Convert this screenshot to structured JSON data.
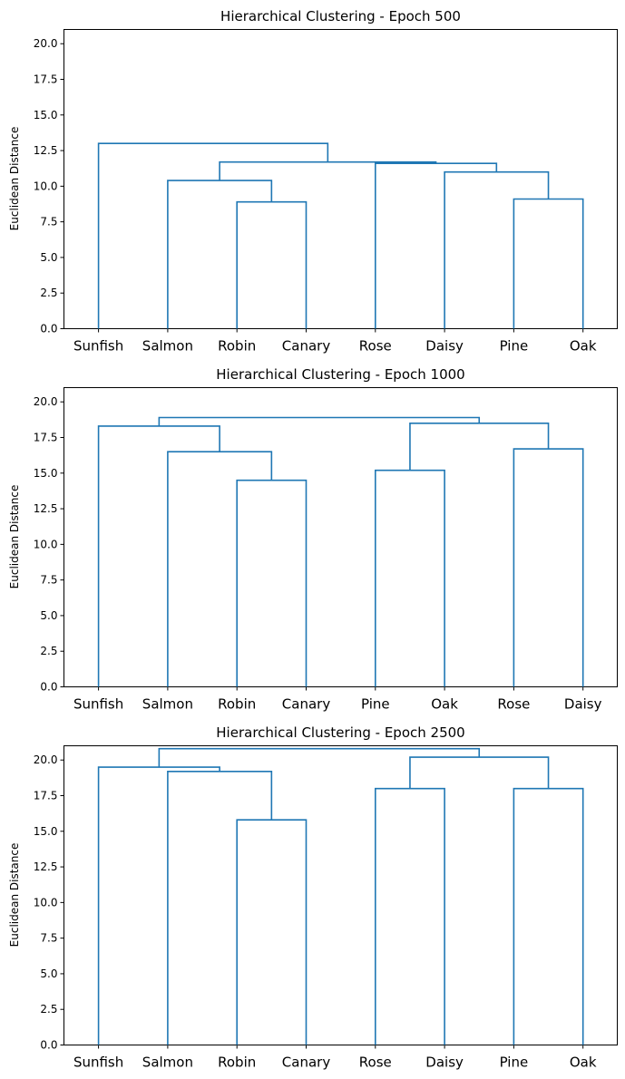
{
  "chart_data": [
    {
      "type": "dendrogram",
      "title": "Hierarchical Clustering - Epoch 500",
      "xlabel": "",
      "ylabel": "Euclidean Distance",
      "ylim": [
        0,
        21
      ],
      "yticks": [
        0.0,
        2.5,
        5.0,
        7.5,
        10.0,
        12.5,
        15.0,
        17.5,
        20.0
      ],
      "leaves": [
        "Sunfish",
        "Salmon",
        "Robin",
        "Canary",
        "Rose",
        "Daisy",
        "Pine",
        "Oak"
      ],
      "merges": [
        {
          "left": "Robin",
          "right": "Canary",
          "height": 8.9
        },
        {
          "left": "Pine",
          "right": "Oak",
          "height": 9.1
        },
        {
          "left": "Salmon",
          "right": [
            "Robin",
            "Canary"
          ],
          "height": 10.4
        },
        {
          "left": "Daisy",
          "right": [
            "Pine",
            "Oak"
          ],
          "height": 11.0
        },
        {
          "left": "Rose",
          "right": [
            "Daisy",
            "Pine",
            "Oak"
          ],
          "height": 11.6
        },
        {
          "left": [
            "Salmon",
            "Robin",
            "Canary"
          ],
          "right": [
            "Rose",
            "Daisy",
            "Pine",
            "Oak"
          ],
          "height": 11.7
        },
        {
          "left": "Sunfish",
          "right": [
            "Salmon",
            "Robin",
            "Canary",
            "Rose",
            "Daisy",
            "Pine",
            "Oak"
          ],
          "height": 13.0
        }
      ],
      "color": "#1f77b4"
    },
    {
      "type": "dendrogram",
      "title": "Hierarchical Clustering - Epoch 1000",
      "xlabel": "",
      "ylabel": "Euclidean Distance",
      "ylim": [
        0,
        21
      ],
      "yticks": [
        0.0,
        2.5,
        5.0,
        7.5,
        10.0,
        12.5,
        15.0,
        17.5,
        20.0
      ],
      "leaves": [
        "Sunfish",
        "Salmon",
        "Robin",
        "Canary",
        "Pine",
        "Oak",
        "Rose",
        "Daisy"
      ],
      "merges": [
        {
          "left": "Robin",
          "right": "Canary",
          "height": 14.5
        },
        {
          "left": "Pine",
          "right": "Oak",
          "height": 15.2
        },
        {
          "left": "Salmon",
          "right": [
            "Robin",
            "Canary"
          ],
          "height": 16.5
        },
        {
          "left": "Rose",
          "right": "Daisy",
          "height": 16.7
        },
        {
          "left": "Sunfish",
          "right": [
            "Salmon",
            "Robin",
            "Canary"
          ],
          "height": 18.3
        },
        {
          "left": [
            "Pine",
            "Oak"
          ],
          "right": [
            "Rose",
            "Daisy"
          ],
          "height": 18.5
        },
        {
          "left": [
            "Sunfish",
            "Salmon",
            "Robin",
            "Canary"
          ],
          "right": [
            "Pine",
            "Oak",
            "Rose",
            "Daisy"
          ],
          "height": 18.9
        }
      ],
      "color": "#1f77b4"
    },
    {
      "type": "dendrogram",
      "title": "Hierarchical Clustering - Epoch 2500",
      "xlabel": "",
      "ylabel": "Euclidean Distance",
      "ylim": [
        0,
        21
      ],
      "yticks": [
        0.0,
        2.5,
        5.0,
        7.5,
        10.0,
        12.5,
        15.0,
        17.5,
        20.0
      ],
      "leaves": [
        "Sunfish",
        "Salmon",
        "Robin",
        "Canary",
        "Rose",
        "Daisy",
        "Pine",
        "Oak"
      ],
      "merges": [
        {
          "left": "Robin",
          "right": "Canary",
          "height": 15.8
        },
        {
          "left": "Rose",
          "right": "Daisy",
          "height": 18.0
        },
        {
          "left": "Pine",
          "right": "Oak",
          "height": 18.0
        },
        {
          "left": "Salmon",
          "right": [
            "Robin",
            "Canary"
          ],
          "height": 19.2
        },
        {
          "left": "Sunfish",
          "right": [
            "Salmon",
            "Robin",
            "Canary"
          ],
          "height": 19.5
        },
        {
          "left": [
            "Rose",
            "Daisy"
          ],
          "right": [
            "Pine",
            "Oak"
          ],
          "height": 20.2
        },
        {
          "left": [
            "Sunfish",
            "Salmon",
            "Robin",
            "Canary"
          ],
          "right": [
            "Rose",
            "Daisy",
            "Pine",
            "Oak"
          ],
          "height": 20.8
        }
      ],
      "color": "#1f77b4"
    }
  ]
}
